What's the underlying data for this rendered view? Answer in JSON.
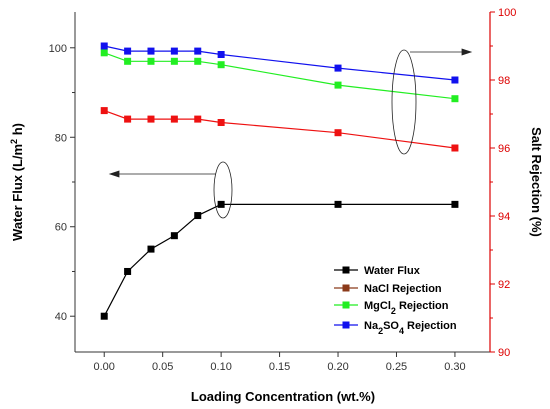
{
  "chart_data": {
    "type": "line",
    "x": [
      0.0,
      0.02,
      0.04,
      0.06,
      0.08,
      0.1,
      0.2,
      0.3
    ],
    "xlabel": "Loading Concentration (wt.%)",
    "xlim": [
      -0.025,
      0.33
    ],
    "xticks": [
      0.0,
      0.05,
      0.1,
      0.15,
      0.2,
      0.25,
      0.3
    ],
    "xtick_labels": [
      "0.00",
      "0.05",
      "0.10",
      "0.15",
      "0.20",
      "0.25",
      "0.30"
    ],
    "ylabel_left": "Water Flux (L/m2 h)",
    "ylim_left": [
      32,
      108
    ],
    "yticks_left": [
      40,
      60,
      80,
      100
    ],
    "ylabel_right": "Salt Rejection (%)",
    "ylim_right": [
      90,
      100
    ],
    "yticks_right": [
      90,
      92,
      94,
      96,
      98,
      100
    ],
    "right_axis_color": "#dd0000",
    "grid": false,
    "legend_position": "bottom-right",
    "series": [
      {
        "name": "Water Flux",
        "axis": "left",
        "color": "#000000",
        "values": [
          40,
          50,
          55,
          58,
          62.5,
          65,
          65,
          65
        ]
      },
      {
        "name": "NaCl Rejection",
        "axis": "right",
        "color": "#ee1111",
        "legend_color": "#8b3a1a",
        "values": [
          97.1,
          96.85,
          96.85,
          96.85,
          96.85,
          96.75,
          96.45,
          96.0
        ]
      },
      {
        "name": "MgCl2 Rejection",
        "axis": "right",
        "color": "#22ee22",
        "values": [
          98.8,
          98.55,
          98.55,
          98.55,
          98.55,
          98.45,
          97.85,
          97.45
        ]
      },
      {
        "name": "Na2SO4 Rejection",
        "axis": "right",
        "color": "#1111ee",
        "values": [
          99.0,
          98.85,
          98.85,
          98.85,
          98.85,
          98.75,
          98.35,
          98.0
        ]
      }
    ]
  }
}
